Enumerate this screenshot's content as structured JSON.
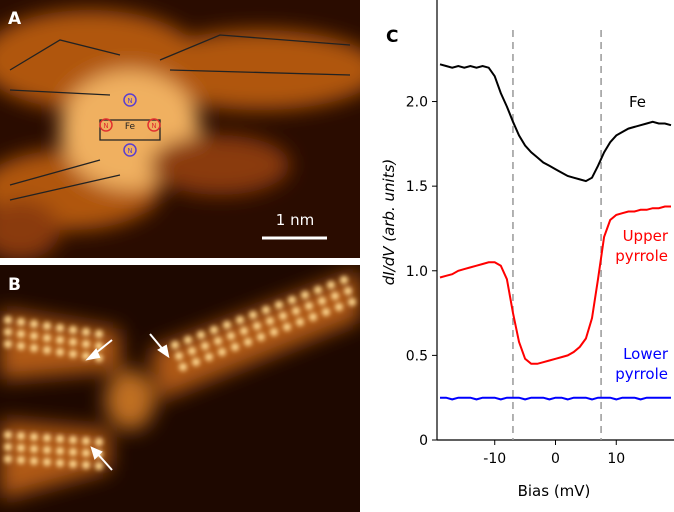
{
  "panels": {
    "a": {
      "letter": "A",
      "scale_bar": "1 nm",
      "metal": "Fe",
      "nitrogens": [
        "N",
        "N",
        "N",
        "N"
      ]
    },
    "b": {
      "letter": "B"
    }
  },
  "chart_data": {
    "type": "line",
    "letter": "C",
    "xlabel": "Bias (mV)",
    "ylabel": "dI/dV (arb. units)",
    "x": [
      -19,
      -18,
      -17,
      -16,
      -15,
      -14,
      -13,
      -12,
      -11,
      -10,
      -9,
      -8,
      -7,
      -6,
      -5,
      -4,
      -3,
      -2,
      -1,
      0,
      1,
      2,
      3,
      4,
      5,
      6,
      7,
      8,
      9,
      10,
      11,
      12,
      13,
      14,
      15,
      16,
      17,
      18,
      19
    ],
    "series": [
      {
        "name": "Fe",
        "color": "#000000",
        "values": [
          2.22,
          2.21,
          2.2,
          2.21,
          2.2,
          2.21,
          2.2,
          2.21,
          2.2,
          2.15,
          2.05,
          1.97,
          1.88,
          1.8,
          1.74,
          1.7,
          1.67,
          1.64,
          1.62,
          1.6,
          1.58,
          1.56,
          1.55,
          1.54,
          1.53,
          1.55,
          1.62,
          1.7,
          1.76,
          1.8,
          1.82,
          1.84,
          1.85,
          1.86,
          1.87,
          1.88,
          1.87,
          1.87,
          1.86
        ]
      },
      {
        "name": "Upper pyrrole",
        "color": "#ff0000",
        "values": [
          0.96,
          0.97,
          0.98,
          1.0,
          1.01,
          1.02,
          1.03,
          1.04,
          1.05,
          1.05,
          1.03,
          0.95,
          0.75,
          0.58,
          0.48,
          0.45,
          0.45,
          0.46,
          0.47,
          0.48,
          0.49,
          0.5,
          0.52,
          0.55,
          0.6,
          0.72,
          0.95,
          1.2,
          1.3,
          1.33,
          1.34,
          1.35,
          1.35,
          1.36,
          1.36,
          1.37,
          1.37,
          1.38,
          1.38
        ]
      },
      {
        "name": "Lower pyrrole",
        "color": "#0000ff",
        "values": [
          0.25,
          0.25,
          0.24,
          0.25,
          0.25,
          0.25,
          0.24,
          0.25,
          0.25,
          0.25,
          0.24,
          0.25,
          0.25,
          0.25,
          0.24,
          0.25,
          0.25,
          0.25,
          0.24,
          0.25,
          0.25,
          0.24,
          0.25,
          0.25,
          0.25,
          0.24,
          0.25,
          0.25,
          0.25,
          0.24,
          0.25,
          0.25,
          0.25,
          0.24,
          0.25,
          0.25,
          0.25,
          0.25,
          0.25
        ]
      }
    ],
    "vlines": [
      -7,
      7.5
    ],
    "xlim": [
      -19.5,
      19.5
    ],
    "ylim": [
      0,
      2.6
    ],
    "xticks": [
      -10,
      0,
      10
    ],
    "yticks": [
      0,
      0.5,
      {
        "value": 1,
        "label": "1.0"
      },
      1.5,
      {
        "value": 2,
        "label": "2.0"
      }
    ]
  }
}
